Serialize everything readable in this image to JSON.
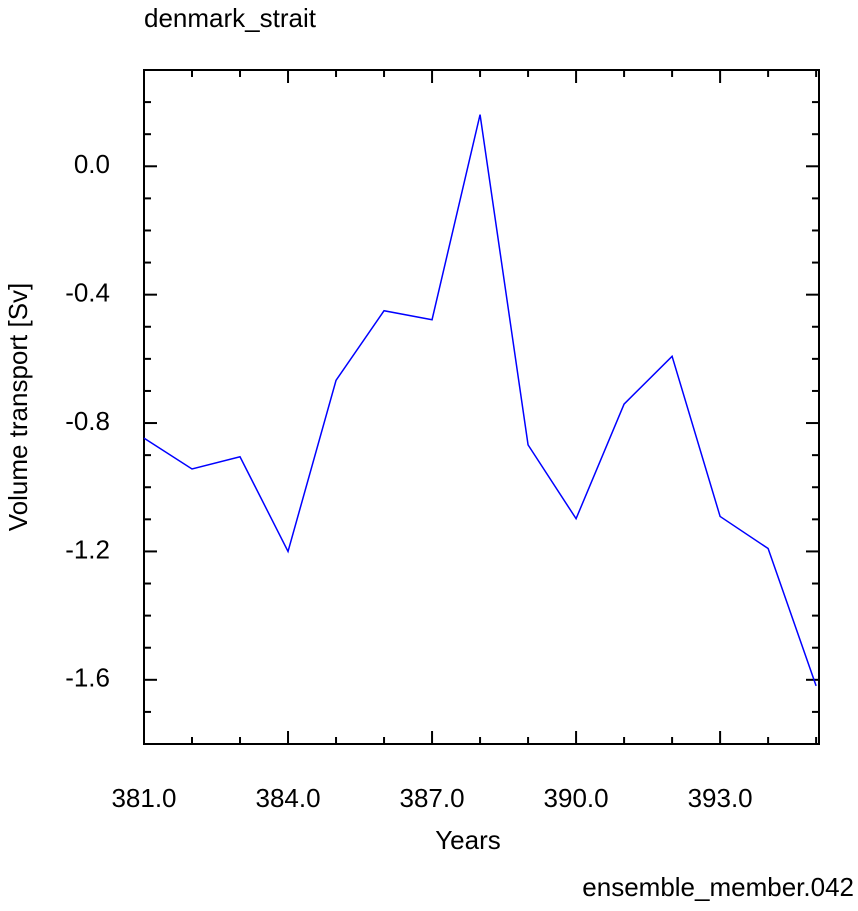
{
  "chart_data": {
    "type": "line",
    "title": "denmark_strait",
    "subtitle": "ensemble_member.042",
    "x_label": "Years",
    "y_label": "Volume transport [Sv]",
    "x": [
      381,
      382,
      383,
      384,
      385,
      386,
      387,
      388,
      389,
      390,
      391,
      392,
      393,
      394,
      395
    ],
    "series": [
      {
        "color": "#0000ff",
        "values": [
          -0.847,
          -0.943,
          -0.905,
          -1.2,
          -0.667,
          -0.45,
          -0.478,
          0.161,
          -0.868,
          -1.098,
          -0.741,
          -0.592,
          -1.091,
          -1.191,
          -1.619
        ]
      }
    ],
    "xlim": [
      381,
      395.06
    ],
    "ylim": [
      -1.8,
      0.3
    ],
    "xticks": [
      {
        "value": 381,
        "label": "381.0"
      },
      {
        "value": 384,
        "label": "384.0"
      },
      {
        "value": 387,
        "label": "387.0"
      },
      {
        "value": 390,
        "label": "390.0"
      },
      {
        "value": 393,
        "label": "393.0"
      }
    ],
    "yticks": [
      {
        "value": 0,
        "label": "0.0"
      },
      {
        "value": -0.4,
        "label": "-0.4"
      },
      {
        "value": -0.8,
        "label": "-0.8"
      },
      {
        "value": -1.2,
        "label": "-1.2"
      },
      {
        "value": -1.6,
        "label": "-1.6"
      }
    ],
    "xminorticks": [
      382,
      383,
      385,
      386,
      388,
      389,
      391,
      392,
      394,
      395
    ],
    "yminorticks": [
      0.2,
      0.1,
      -0.1,
      -0.2,
      -0.3,
      -0.5,
      -0.6,
      -0.7,
      -0.9,
      -1.0,
      -1.1,
      -1.3,
      -1.4,
      -1.5,
      -1.7
    ],
    "subtitle_color": "#0000ff"
  }
}
